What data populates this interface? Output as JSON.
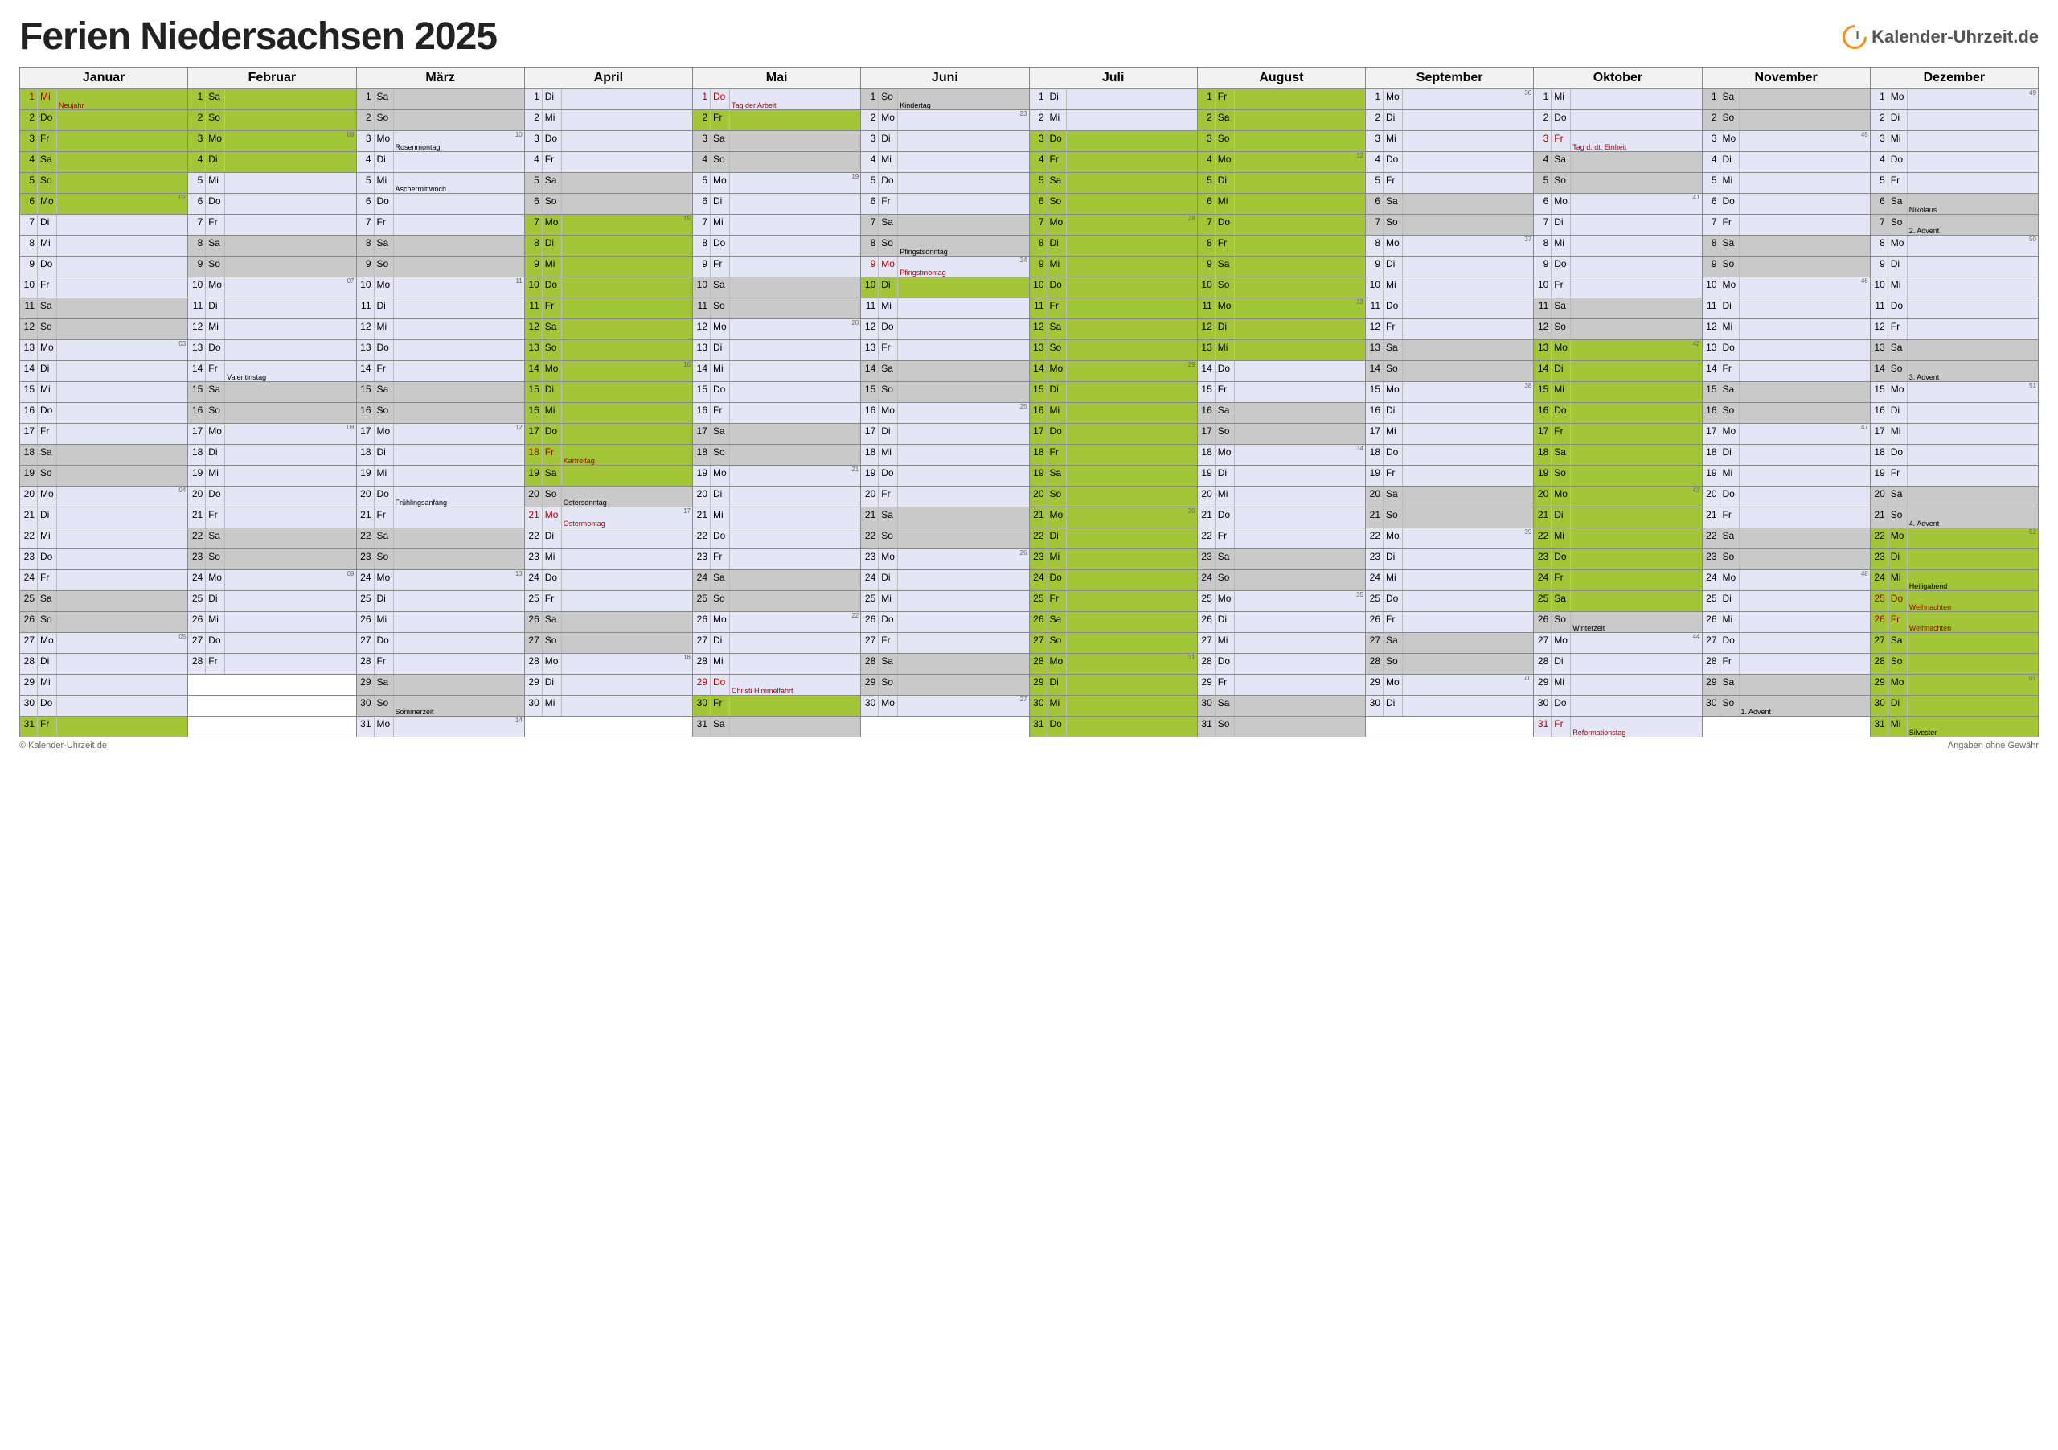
{
  "title": "Ferien Niedersachsen 2025",
  "logo_text": "Kalender-Uhrzeit.de",
  "footer_left": "© Kalender-Uhrzeit.de",
  "footer_right": "Angaben ohne Gewähr",
  "colors": {
    "vacation": "#a3c639",
    "weekend": "#c9c9c9",
    "default": "#e4e6f5",
    "holiday_text": "#b30000"
  },
  "months": [
    "Januar",
    "Februar",
    "März",
    "April",
    "Mai",
    "Juni",
    "Juli",
    "August",
    "September",
    "Oktober",
    "November",
    "Dezember"
  ],
  "year": 2025,
  "first_weekday_idx": [
    2,
    5,
    5,
    1,
    3,
    6,
    1,
    4,
    0,
    2,
    5,
    0
  ],
  "month_len": [
    31,
    28,
    31,
    30,
    31,
    30,
    31,
    31,
    30,
    31,
    30,
    31
  ],
  "weekday_abbr": [
    "Mo",
    "Di",
    "Mi",
    "Do",
    "Fr",
    "Sa",
    "So"
  ],
  "week_numbers": {
    "1-6": "02",
    "1-13": "03",
    "1-20": "04",
    "1-27": "05",
    "2-3": "06",
    "2-10": "07",
    "2-17": "08",
    "2-24": "09",
    "3-3": "10",
    "3-10": "11",
    "3-17": "12",
    "3-24": "13",
    "3-31": "14",
    "4-7": "15",
    "4-14": "16",
    "4-21": "17",
    "4-28": "18",
    "5-5": "19",
    "5-12": "20",
    "5-19": "21",
    "5-26": "22",
    "6-2": "23",
    "6-9": "24",
    "6-16": "25",
    "6-23": "26",
    "6-30": "27",
    "7-7": "28",
    "7-14": "29",
    "7-21": "30",
    "7-28": "31",
    "8-4": "32",
    "8-11": "33",
    "8-18": "34",
    "8-25": "35",
    "9-1": "36",
    "9-8": "37",
    "9-15": "38",
    "9-22": "39",
    "9-29": "40",
    "10-6": "41",
    "10-13": "42",
    "10-20": "43",
    "10-27": "44",
    "11-3": "45",
    "11-10": "46",
    "11-17": "47",
    "11-24": "48",
    "12-1": "49",
    "12-8": "50",
    "12-15": "51",
    "12-22": "52",
    "12-29": "01"
  },
  "holidays": {
    "1-1": "Neujahr",
    "3-3": "Rosenmontag",
    "3-5": "Aschermittwoch",
    "2-14": "Valentinstag",
    "3-20": "Frühlingsanfang",
    "3-30": "Sommerzeit",
    "4-18": "Karfreitag",
    "4-20": "Ostersonntag",
    "4-21": "Ostermontag",
    "5-1": "Tag der Arbeit",
    "5-29": "Christi Himmelfahrt",
    "6-1": "Kindertag",
    "6-8": "Pfingstsonntag",
    "6-9": "Pfingstmontag",
    "10-3": "Tag d. dt. Einheit",
    "10-26": "Winterzeit",
    "10-31": "Reformationstag",
    "11-30": "1. Advent",
    "12-6": "Nikolaus",
    "12-7": "2. Advent",
    "12-14": "3. Advent",
    "12-21": "4. Advent",
    "12-24": "Heiligabend",
    "12-25": "Weihnachten",
    "12-26": "Weihnachten",
    "12-31": "Silvester"
  },
  "red_days": [
    "1-1",
    "4-18",
    "4-21",
    "5-1",
    "5-29",
    "6-9",
    "10-3",
    "10-31",
    "12-25",
    "12-26"
  ],
  "vacation_ranges": [
    [
      1,
      1,
      1,
      6
    ],
    [
      1,
      31,
      2,
      4
    ],
    [
      4,
      7,
      4,
      19
    ],
    [
      5,
      2,
      5,
      2
    ],
    [
      5,
      30,
      5,
      30
    ],
    [
      6,
      10,
      6,
      10
    ],
    [
      7,
      3,
      8,
      13
    ],
    [
      10,
      13,
      10,
      25
    ],
    [
      12,
      22,
      12,
      31
    ]
  ]
}
